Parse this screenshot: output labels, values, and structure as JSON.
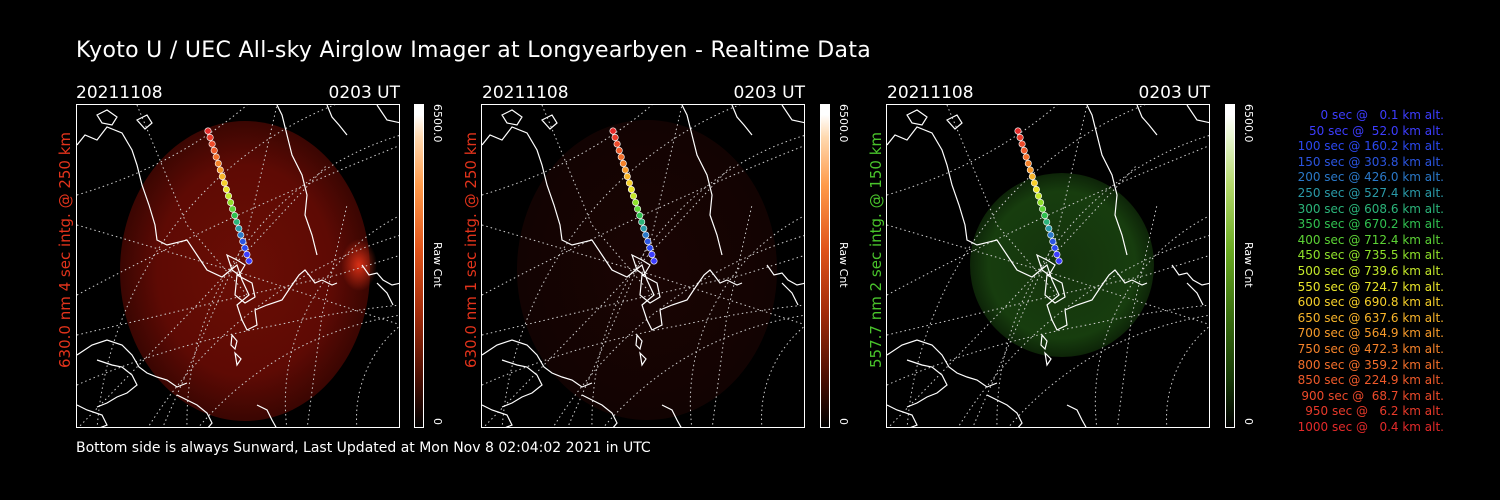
{
  "title": "Kyoto U / UEC All-sky Airglow Imager at Longyearbyen - Realtime Data",
  "footer": "Bottom side is always Sunward, Last Updated at Mon Nov  8 02:04:02 2021 in UTC",
  "panels": [
    {
      "date": "20211108",
      "ut": "0203 UT",
      "ylabel": "630.0 nm 4 sec intg. @ 250 km",
      "ylabel_color": "#e2331b",
      "cbar_max": "6500.0",
      "cbar_min": "0",
      "cbar_label": "Raw Cnt",
      "glow": "red"
    },
    {
      "date": "20211108",
      "ut": "0203 UT",
      "ylabel": "630.0 nm 1 sec intg. @ 250 km",
      "ylabel_color": "#e2331b",
      "cbar_max": "6500.0",
      "cbar_min": "0",
      "cbar_label": "Raw Cnt",
      "glow": "dim"
    },
    {
      "date": "20211108",
      "ut": "0203 UT",
      "ylabel": "557.7 nm 2 sec intg. @ 150 km",
      "ylabel_color": "#49c32b",
      "cbar_max": "6500.0",
      "cbar_min": "0",
      "cbar_label": "Raw Cnt",
      "glow": "green"
    }
  ],
  "legend": [
    {
      "text": "0 sec @   0.1 km alt.",
      "color": "#3d3dff"
    },
    {
      "text": "50 sec @  52.0 km alt.",
      "color": "#3d3dff"
    },
    {
      "text": "100 sec @ 160.2 km alt.",
      "color": "#2b48f0"
    },
    {
      "text": "150 sec @ 303.8 km alt.",
      "color": "#2b55e0"
    },
    {
      "text": "200 sec @ 426.0 km alt.",
      "color": "#2a78c8"
    },
    {
      "text": "250 sec @ 527.4 km alt.",
      "color": "#2a9aa8"
    },
    {
      "text": "300 sec @ 608.6 km alt.",
      "color": "#2bb47a"
    },
    {
      "text": "350 sec @ 670.2 km alt.",
      "color": "#30c050"
    },
    {
      "text": "400 sec @ 712.4 km alt.",
      "color": "#5cd235"
    },
    {
      "text": "450 sec @ 735.5 km alt.",
      "color": "#8ee02a"
    },
    {
      "text": "500 sec @ 739.6 km alt.",
      "color": "#c4e82a"
    },
    {
      "text": "550 sec @ 724.7 km alt.",
      "color": "#e8e42a"
    },
    {
      "text": "600 sec @ 690.8 km alt.",
      "color": "#f6cf2a"
    },
    {
      "text": "650 sec @ 637.6 km alt.",
      "color": "#f7b42a"
    },
    {
      "text": "700 sec @ 564.9 km alt.",
      "color": "#f79a2a"
    },
    {
      "text": "750 sec @ 472.3 km alt.",
      "color": "#f5822a"
    },
    {
      "text": "800 sec @ 359.2 km alt.",
      "color": "#f26e2a"
    },
    {
      "text": "850 sec @ 224.9 km alt.",
      "color": "#ef5a2a"
    },
    {
      "text": "900 sec @  68.7 km alt.",
      "color": "#ec4a2a"
    },
    {
      "text": "950 sec @   6.2 km alt.",
      "color": "#e83a2a"
    },
    {
      "text": "1000 sec @   0.4 km alt.",
      "color": "#e42a2a"
    }
  ]
}
